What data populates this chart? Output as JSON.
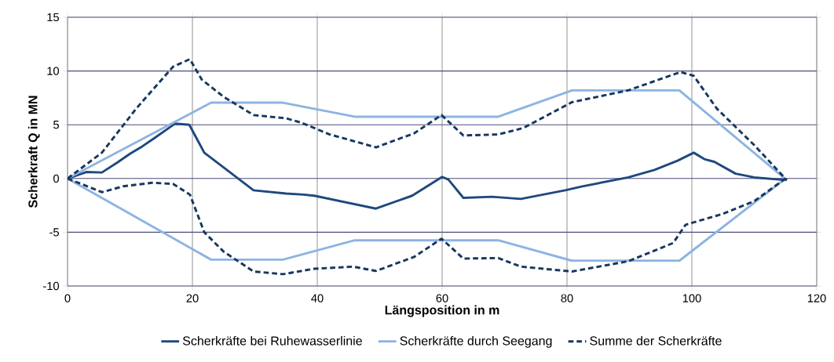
{
  "chart_data": {
    "type": "line",
    "xlabel": "Längsposition in m",
    "ylabel": "Scherkraft Q in MN",
    "xlim": [
      0,
      120
    ],
    "xticks": [
      0,
      20,
      40,
      60,
      80,
      100,
      120
    ],
    "ylim": [
      -10,
      15
    ],
    "yticks": [
      -10,
      -5,
      0,
      5,
      10,
      15
    ],
    "grid": true,
    "legend": "bottom",
    "series": [
      {
        "name": "Scherkräfte bei Ruhewasserlinie",
        "color": "#1f497d",
        "line_style": "solid",
        "x": [
          0,
          3,
          5.5,
          8,
          10,
          12,
          14,
          17.2,
          19.5,
          21.9,
          29.8,
          35,
          37.8,
          39.5,
          49.4,
          55.2,
          60,
          61,
          63.4,
          68,
          72.6,
          79.7,
          82.3,
          89.8,
          94,
          97.7,
          100.3,
          102,
          103.6,
          107,
          110,
          115.2
        ],
        "values": [
          0,
          0.6,
          0.56,
          1.5,
          2.3,
          3,
          3.8,
          5.1,
          5,
          2.4,
          -1.1,
          -1.4,
          -1.5,
          -1.6,
          -2.8,
          -1.6,
          0.15,
          -0.1,
          -1.8,
          -1.7,
          -1.9,
          -1.1,
          -0.75,
          0.1,
          0.8,
          1.65,
          2.4,
          1.8,
          1.55,
          0.45,
          0.1,
          -0.15
        ]
      },
      {
        "name": "Scherkräfte durch Seegang",
        "color": "#8db4e2",
        "line_style": "solid",
        "x": [
          0,
          23,
          34.5,
          46,
          69,
          80.8,
          98,
          115.2
        ],
        "values": [
          0,
          7.05,
          7.05,
          5.75,
          5.75,
          8.2,
          8.2,
          -0.15
        ]
      },
      {
        "color": "#8db4e2",
        "line_style": "solid",
        "x": [
          0,
          23,
          34.5,
          46,
          69,
          80.8,
          98,
          115
        ],
        "values": [
          0,
          -7.55,
          -7.55,
          -5.75,
          -5.75,
          -7.65,
          -7.65,
          0
        ]
      },
      {
        "name": "Summe der Scherkräfte",
        "color": "#17375e",
        "line_style": "dashed",
        "x": [
          0,
          5.5,
          11,
          16.9,
          19.6,
          21.5,
          25,
          29.8,
          35,
          37.4,
          42,
          49.4,
          55.5,
          59.9,
          63.4,
          69,
          73,
          80.8,
          89.8,
          98.2,
          100.3,
          104,
          110,
          115.2
        ],
        "values": [
          0,
          2.4,
          6.5,
          10.4,
          11.1,
          9.2,
          7.6,
          5.9,
          5.6,
          5.2,
          4.1,
          2.9,
          4.2,
          5.9,
          4.0,
          4.1,
          4.7,
          7.1,
          8.2,
          9.9,
          9.55,
          6.5,
          3.1,
          -0.15
        ]
      },
      {
        "color": "#17375e",
        "line_style": "dashed",
        "x": [
          0,
          5.5,
          8.9,
          13.5,
          16.9,
          19.6,
          21.9,
          25,
          29.8,
          34.5,
          39.5,
          45.8,
          49.4,
          55.5,
          59.9,
          63.4,
          69,
          72.6,
          80.8,
          89.8,
          97,
          99,
          104.9,
          110,
          115
        ],
        "values": [
          0,
          -1.27,
          -0.73,
          -0.4,
          -0.5,
          -1.5,
          -5.0,
          -6.8,
          -8.65,
          -8.9,
          -8.4,
          -8.2,
          -8.6,
          -7.3,
          -5.6,
          -7.45,
          -7.4,
          -8.2,
          -8.65,
          -7.7,
          -6.0,
          -4.3,
          -3.3,
          -2.1,
          0
        ]
      }
    ]
  }
}
